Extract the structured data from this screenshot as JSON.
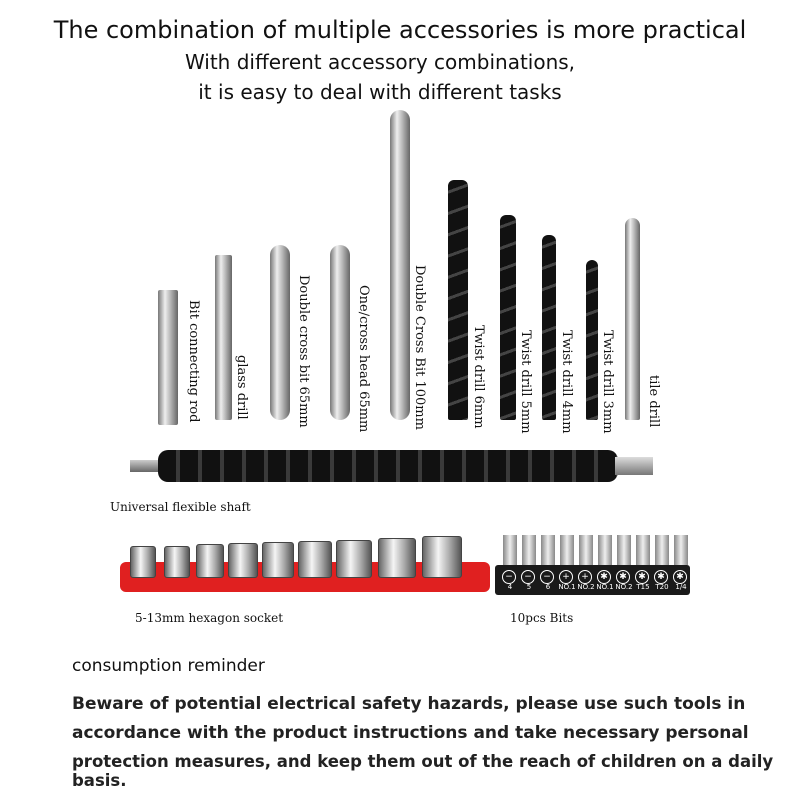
{
  "header": {
    "title": "The combination of multiple accessories is more practical",
    "subtitle_line1": "With different accessory combinations,",
    "subtitle_line2": "it is easy to deal with different tasks"
  },
  "tools": [
    {
      "label": "Bit connecting rod"
    },
    {
      "label": "glass drill"
    },
    {
      "label": "Double cross bit 65mm"
    },
    {
      "label": "One/cross head 65mm"
    },
    {
      "label": "Double Cross Bit 100mm"
    },
    {
      "label": "Twist drill 6mm"
    },
    {
      "label": "Twist drill 5mm"
    },
    {
      "label": "Twist drill 4mm"
    },
    {
      "label": "Twist drill 3mm"
    },
    {
      "label": "tile drill"
    }
  ],
  "shaft": {
    "label": "Universal flexible shaft"
  },
  "sockets": {
    "label": "5-13mm hexagon socket",
    "tray_color": "#e02020"
  },
  "bits": {
    "label": "10pcs Bits",
    "sizes": [
      "4",
      "5",
      "6",
      "NO.1",
      "NO.2",
      "NO.1",
      "NO.2",
      "T15",
      "T20",
      "1/4"
    ]
  },
  "reminder": {
    "heading": "consumption reminder",
    "line1": "Beware of potential electrical safety hazards, please use such tools in",
    "line2": "accordance with the product instructions and take necessary personal",
    "line3": "protection measures, and keep them out of the reach of children on a daily basis."
  }
}
